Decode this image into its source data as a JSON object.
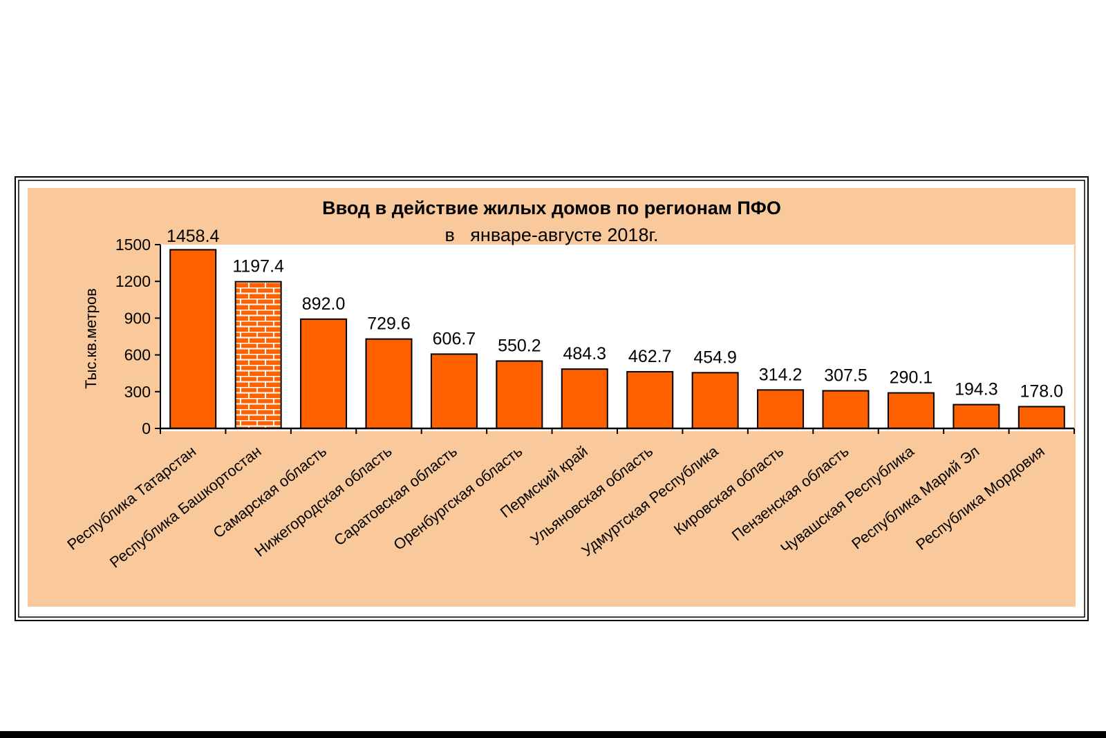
{
  "colors": {
    "panel_background": "#f9c99b",
    "plot_background": "#ffffff",
    "bar_fill": "#ff6000",
    "brick_fill": "#ff6000",
    "brick_mortar": "#ffffff",
    "outline": "#000000"
  },
  "chart_data": {
    "type": "bar",
    "title": "Ввод в действие жилых домов по регионам ПФО",
    "subtitle": "в   январе-августе 2018г.",
    "xlabel": "",
    "ylabel": "Тыс.кв.метров",
    "ylim": [
      0,
      1500
    ],
    "yticks": [
      0,
      300,
      600,
      900,
      1200,
      1500
    ],
    "grid": false,
    "legend": "none",
    "highlighted_category": "Республика Башкортостан",
    "highlight_pattern": "brick",
    "categories": [
      "Республика Татарстан",
      "Республика Башкортостан",
      "Самарская область",
      "Нижегородская область",
      "Саратовская область",
      "Оренбургская область",
      "Пермский край",
      "Ульяновская область",
      "Удмуртская Республика",
      "Кировская область",
      "Пензенская область",
      "Чувашская Республика",
      "Республика Марий Эл",
      "Республика Мордовия"
    ],
    "values": [
      1458.4,
      1197.4,
      892.0,
      729.6,
      606.7,
      550.2,
      484.3,
      462.7,
      454.9,
      314.2,
      307.5,
      290.1,
      194.3,
      178.0
    ],
    "value_labels": [
      "1458.4",
      "1197.4",
      "892.0",
      "729.6",
      "606.7",
      "550.2",
      "484.3",
      "462.7",
      "454.9",
      "314.2",
      "307.5",
      "290.1",
      "194.3",
      "178.0"
    ]
  }
}
